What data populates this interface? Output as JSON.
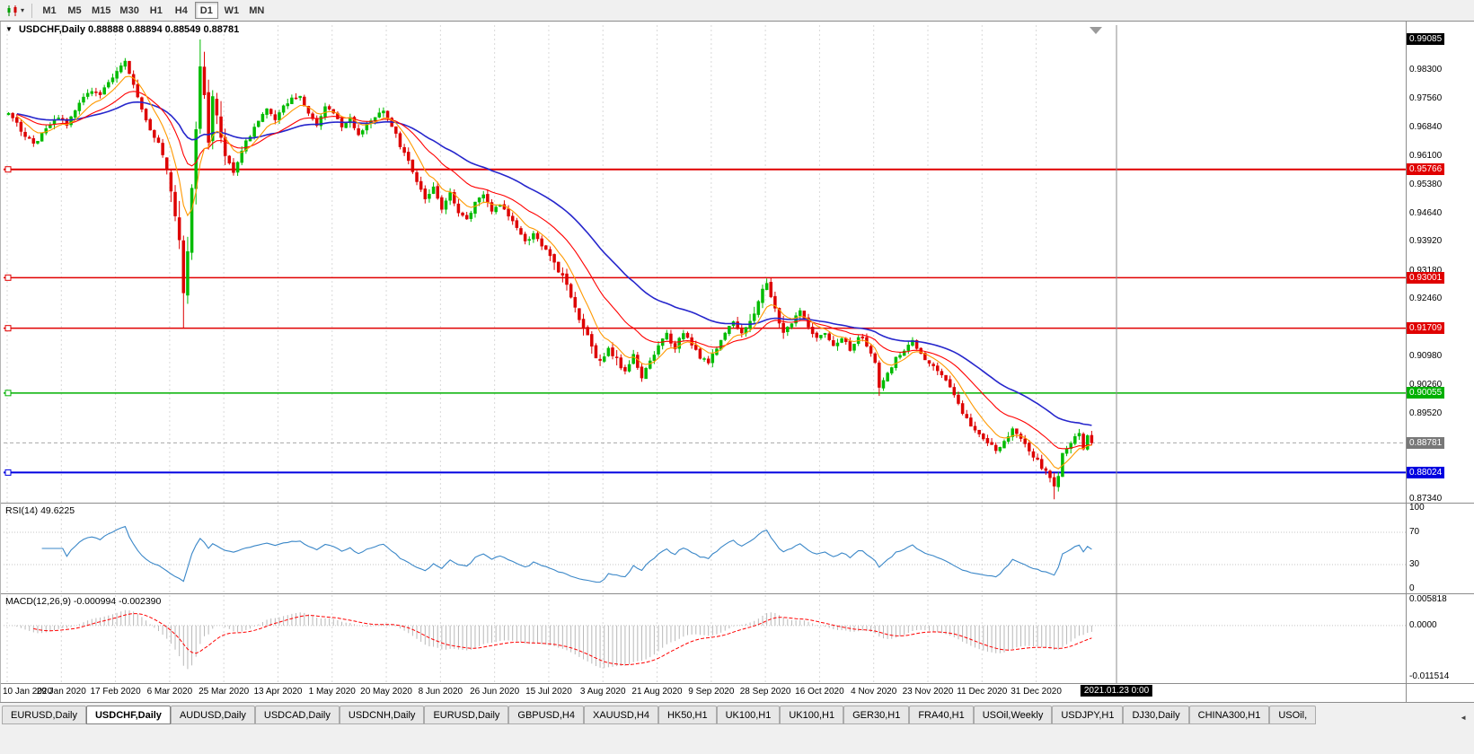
{
  "toolbar": {
    "chart_type_icon": "candlestick-chart-icon",
    "timeframes": [
      "M1",
      "M5",
      "M15",
      "M30",
      "H1",
      "H4",
      "D1",
      "W1",
      "MN"
    ],
    "active_timeframe": "D1"
  },
  "chart_data": {
    "type": "candlestick",
    "symbol": "USDCHF",
    "period": "Daily",
    "title_text": "USDCHF,Daily",
    "ohlc_text": "0.88888 0.88894 0.88549 0.88781",
    "open": "0.88888",
    "high": "0.88894",
    "low": "0.88549",
    "close": "0.88781",
    "ylim": [
      0.873,
      0.9945
    ],
    "y_axis_ticks": [
      "0.98300",
      "0.97560",
      "0.96840",
      "0.96100",
      "0.95380",
      "0.94640",
      "0.93920",
      "0.93180",
      "0.92460",
      "0.91720",
      "0.90980",
      "0.90260",
      "0.89520",
      "0.87340"
    ],
    "y_axis_markers": [
      {
        "text": "0.99085",
        "color": "#000000",
        "kind": "high-marker"
      },
      {
        "text": "0.95766",
        "color": "#e00000",
        "kind": "hline-label"
      },
      {
        "text": "0.93001",
        "color": "#e00000",
        "kind": "hline-label"
      },
      {
        "text": "0.91709",
        "color": "#e00000",
        "kind": "hline-label"
      },
      {
        "text": "0.90055",
        "color": "#00b000",
        "kind": "hline-label"
      },
      {
        "text": "0.88781",
        "color": "#787878",
        "kind": "bid-price-label"
      },
      {
        "text": "0.88024",
        "color": "#0000e0",
        "kind": "hline-label"
      }
    ],
    "hlines": [
      {
        "value": 0.95766,
        "color": "#e00000",
        "width": 2
      },
      {
        "value": 0.93001,
        "color": "#e00000",
        "width": 1.5
      },
      {
        "value": 0.91709,
        "color": "#e00000",
        "width": 1.5
      },
      {
        "value": 0.90055,
        "color": "#00b000",
        "width": 1.5
      },
      {
        "value": 0.88024,
        "color": "#0000e0",
        "width": 2
      }
    ],
    "bid_price": 0.88781,
    "x_labels": [
      "10 Jan 2020",
      "29 Jan 2020",
      "17 Feb 2020",
      "6 Mar 2020",
      "25 Mar 2020",
      "13 Apr 2020",
      "1 May 2020",
      "20 May 2020",
      "8 Jun 2020",
      "26 Jun 2020",
      "15 Jul 2020",
      "3 Aug 2020",
      "21 Aug 2020",
      "9 Sep 2020",
      "28 Sep 2020",
      "16 Oct 2020",
      "4 Nov 2020",
      "23 Nov 2020",
      "11 Dec 2020",
      "31 Dec 2020"
    ],
    "x_cursor_label": "2021.01.23 0:00",
    "bars_per_xtick": 13,
    "candle_count": 261,
    "colors": {
      "up": "#00bb00",
      "down": "#dd0000",
      "ma_fast": "#ff9900",
      "ma_mid": "#ff0000",
      "ma_slow": "#2626cc",
      "rsi": "#3a87c8",
      "macd_hist": "#b8b8b8",
      "macd_signal": "#ff0000",
      "grid": "#d9d9d9",
      "separator": "#8c8c8c"
    },
    "series_waypoints": [
      [
        0,
        0.9718
      ],
      [
        2,
        0.9695
      ],
      [
        4,
        0.966
      ],
      [
        6,
        0.964
      ],
      [
        8,
        0.9668
      ],
      [
        10,
        0.969
      ],
      [
        12,
        0.9712
      ],
      [
        14,
        0.9692
      ],
      [
        16,
        0.973
      ],
      [
        18,
        0.9758
      ],
      [
        20,
        0.978
      ],
      [
        22,
        0.9772
      ],
      [
        24,
        0.98
      ],
      [
        26,
        0.9828
      ],
      [
        28,
        0.9848
      ],
      [
        30,
        0.9795
      ],
      [
        32,
        0.9735
      ],
      [
        34,
        0.968
      ],
      [
        36,
        0.9645
      ],
      [
        38,
        0.9575
      ],
      [
        40,
        0.9468
      ],
      [
        41,
        0.9395
      ],
      [
        42,
        0.9258
      ],
      [
        43,
        0.938
      ],
      [
        44,
        0.953
      ],
      [
        45,
        0.9662
      ],
      [
        46,
        0.982
      ],
      [
        47,
        0.9755
      ],
      [
        48,
        0.966
      ],
      [
        49,
        0.9752
      ],
      [
        50,
        0.97
      ],
      [
        51,
        0.964
      ],
      [
        52,
        0.9605
      ],
      [
        54,
        0.9572
      ],
      [
        56,
        0.9628
      ],
      [
        58,
        0.9665
      ],
      [
        60,
        0.97
      ],
      [
        62,
        0.9728
      ],
      [
        64,
        0.97
      ],
      [
        66,
        0.9738
      ],
      [
        68,
        0.9755
      ],
      [
        70,
        0.9768
      ],
      [
        72,
        0.9718
      ],
      [
        74,
        0.969
      ],
      [
        76,
        0.9736
      ],
      [
        78,
        0.972
      ],
      [
        80,
        0.9682
      ],
      [
        82,
        0.9708
      ],
      [
        84,
        0.9668
      ],
      [
        86,
        0.969
      ],
      [
        88,
        0.9712
      ],
      [
        90,
        0.973
      ],
      [
        92,
        0.9688
      ],
      [
        94,
        0.9638
      ],
      [
        96,
        0.9595
      ],
      [
        98,
        0.955
      ],
      [
        100,
        0.9498
      ],
      [
        102,
        0.9528
      ],
      [
        104,
        0.948
      ],
      [
        106,
        0.9512
      ],
      [
        108,
        0.9468
      ],
      [
        110,
        0.9445
      ],
      [
        112,
        0.9488
      ],
      [
        114,
        0.9512
      ],
      [
        116,
        0.947
      ],
      [
        118,
        0.9482
      ],
      [
        120,
        0.946
      ],
      [
        122,
        0.9425
      ],
      [
        124,
        0.9392
      ],
      [
        126,
        0.9408
      ],
      [
        128,
        0.938
      ],
      [
        130,
        0.9358
      ],
      [
        132,
        0.9322
      ],
      [
        134,
        0.9288
      ],
      [
        136,
        0.9228
      ],
      [
        138,
        0.917
      ],
      [
        140,
        0.9122
      ],
      [
        142,
        0.908
      ],
      [
        144,
        0.9128
      ],
      [
        146,
        0.9088
      ],
      [
        148,
        0.9058
      ],
      [
        150,
        0.9108
      ],
      [
        152,
        0.9042
      ],
      [
        154,
        0.9088
      ],
      [
        156,
        0.9122
      ],
      [
        158,
        0.9155
      ],
      [
        160,
        0.9118
      ],
      [
        162,
        0.9162
      ],
      [
        164,
        0.913
      ],
      [
        166,
        0.9098
      ],
      [
        168,
        0.9082
      ],
      [
        170,
        0.9122
      ],
      [
        172,
        0.9158
      ],
      [
        174,
        0.9188
      ],
      [
        176,
        0.916
      ],
      [
        178,
        0.9185
      ],
      [
        180,
        0.9238
      ],
      [
        182,
        0.9288
      ],
      [
        184,
        0.9215
      ],
      [
        186,
        0.9165
      ],
      [
        188,
        0.9188
      ],
      [
        190,
        0.9215
      ],
      [
        192,
        0.9172
      ],
      [
        194,
        0.9142
      ],
      [
        196,
        0.9162
      ],
      [
        198,
        0.9128
      ],
      [
        200,
        0.9148
      ],
      [
        202,
        0.9118
      ],
      [
        204,
        0.9152
      ],
      [
        206,
        0.9128
      ],
      [
        208,
        0.9088
      ],
      [
        209,
        0.9018
      ],
      [
        211,
        0.9058
      ],
      [
        213,
        0.9092
      ],
      [
        215,
        0.9118
      ],
      [
        217,
        0.9135
      ],
      [
        219,
        0.9102
      ],
      [
        221,
        0.9082
      ],
      [
        223,
        0.9062
      ],
      [
        225,
        0.904
      ],
      [
        227,
        0.8995
      ],
      [
        229,
        0.8958
      ],
      [
        231,
        0.8922
      ],
      [
        233,
        0.8905
      ],
      [
        235,
        0.8882
      ],
      [
        237,
        0.8855
      ],
      [
        239,
        0.8882
      ],
      [
        241,
        0.8912
      ],
      [
        243,
        0.8885
      ],
      [
        245,
        0.8858
      ],
      [
        247,
        0.8832
      ],
      [
        249,
        0.8802
      ],
      [
        251,
        0.8768
      ],
      [
        252,
        0.8795
      ],
      [
        253,
        0.8848
      ],
      [
        255,
        0.8882
      ],
      [
        257,
        0.8908
      ],
      [
        258,
        0.8862
      ],
      [
        259,
        0.8892
      ],
      [
        260,
        0.88781
      ]
    ],
    "bar_overrides": {
      "42": {
        "low": 0.9172
      },
      "46": {
        "high": 0.99085
      },
      "209": {
        "low": 0.8998
      },
      "251": {
        "low": 0.8734
      },
      "260": {
        "close": 0.88781
      }
    },
    "indicators": {
      "rsi": {
        "label": "RSI(14) 49.6225",
        "period": 14,
        "value": "49.6225",
        "scale_ticks": [
          "100",
          "70",
          "30",
          "0"
        ],
        "levels": [
          70,
          30
        ]
      },
      "macd": {
        "label": "MACD(12,26,9) -0.000994 -0.002390",
        "values": [
          "-0.000994",
          "-0.002390"
        ],
        "scale_ticks": [
          "0.005818",
          "0.0000",
          "-0.011514"
        ],
        "range": [
          -0.011514,
          0.005818
        ]
      }
    }
  },
  "tabbar": {
    "tabs": [
      "EURUSD,Daily",
      "USDCHF,Daily",
      "AUDUSD,Daily",
      "USDCAD,Daily",
      "USDCNH,Daily",
      "EURUSD,Daily",
      "GBPUSD,H4",
      "XAUUSD,H4",
      "HK50,H1",
      "UK100,H1",
      "UK100,H1",
      "GER30,H1",
      "FRA40,H1",
      "USOil,Weekly",
      "USDJPY,H1",
      "DJ30,Daily",
      "CHINA300,H1",
      "USOil,"
    ],
    "active_index": 1
  }
}
